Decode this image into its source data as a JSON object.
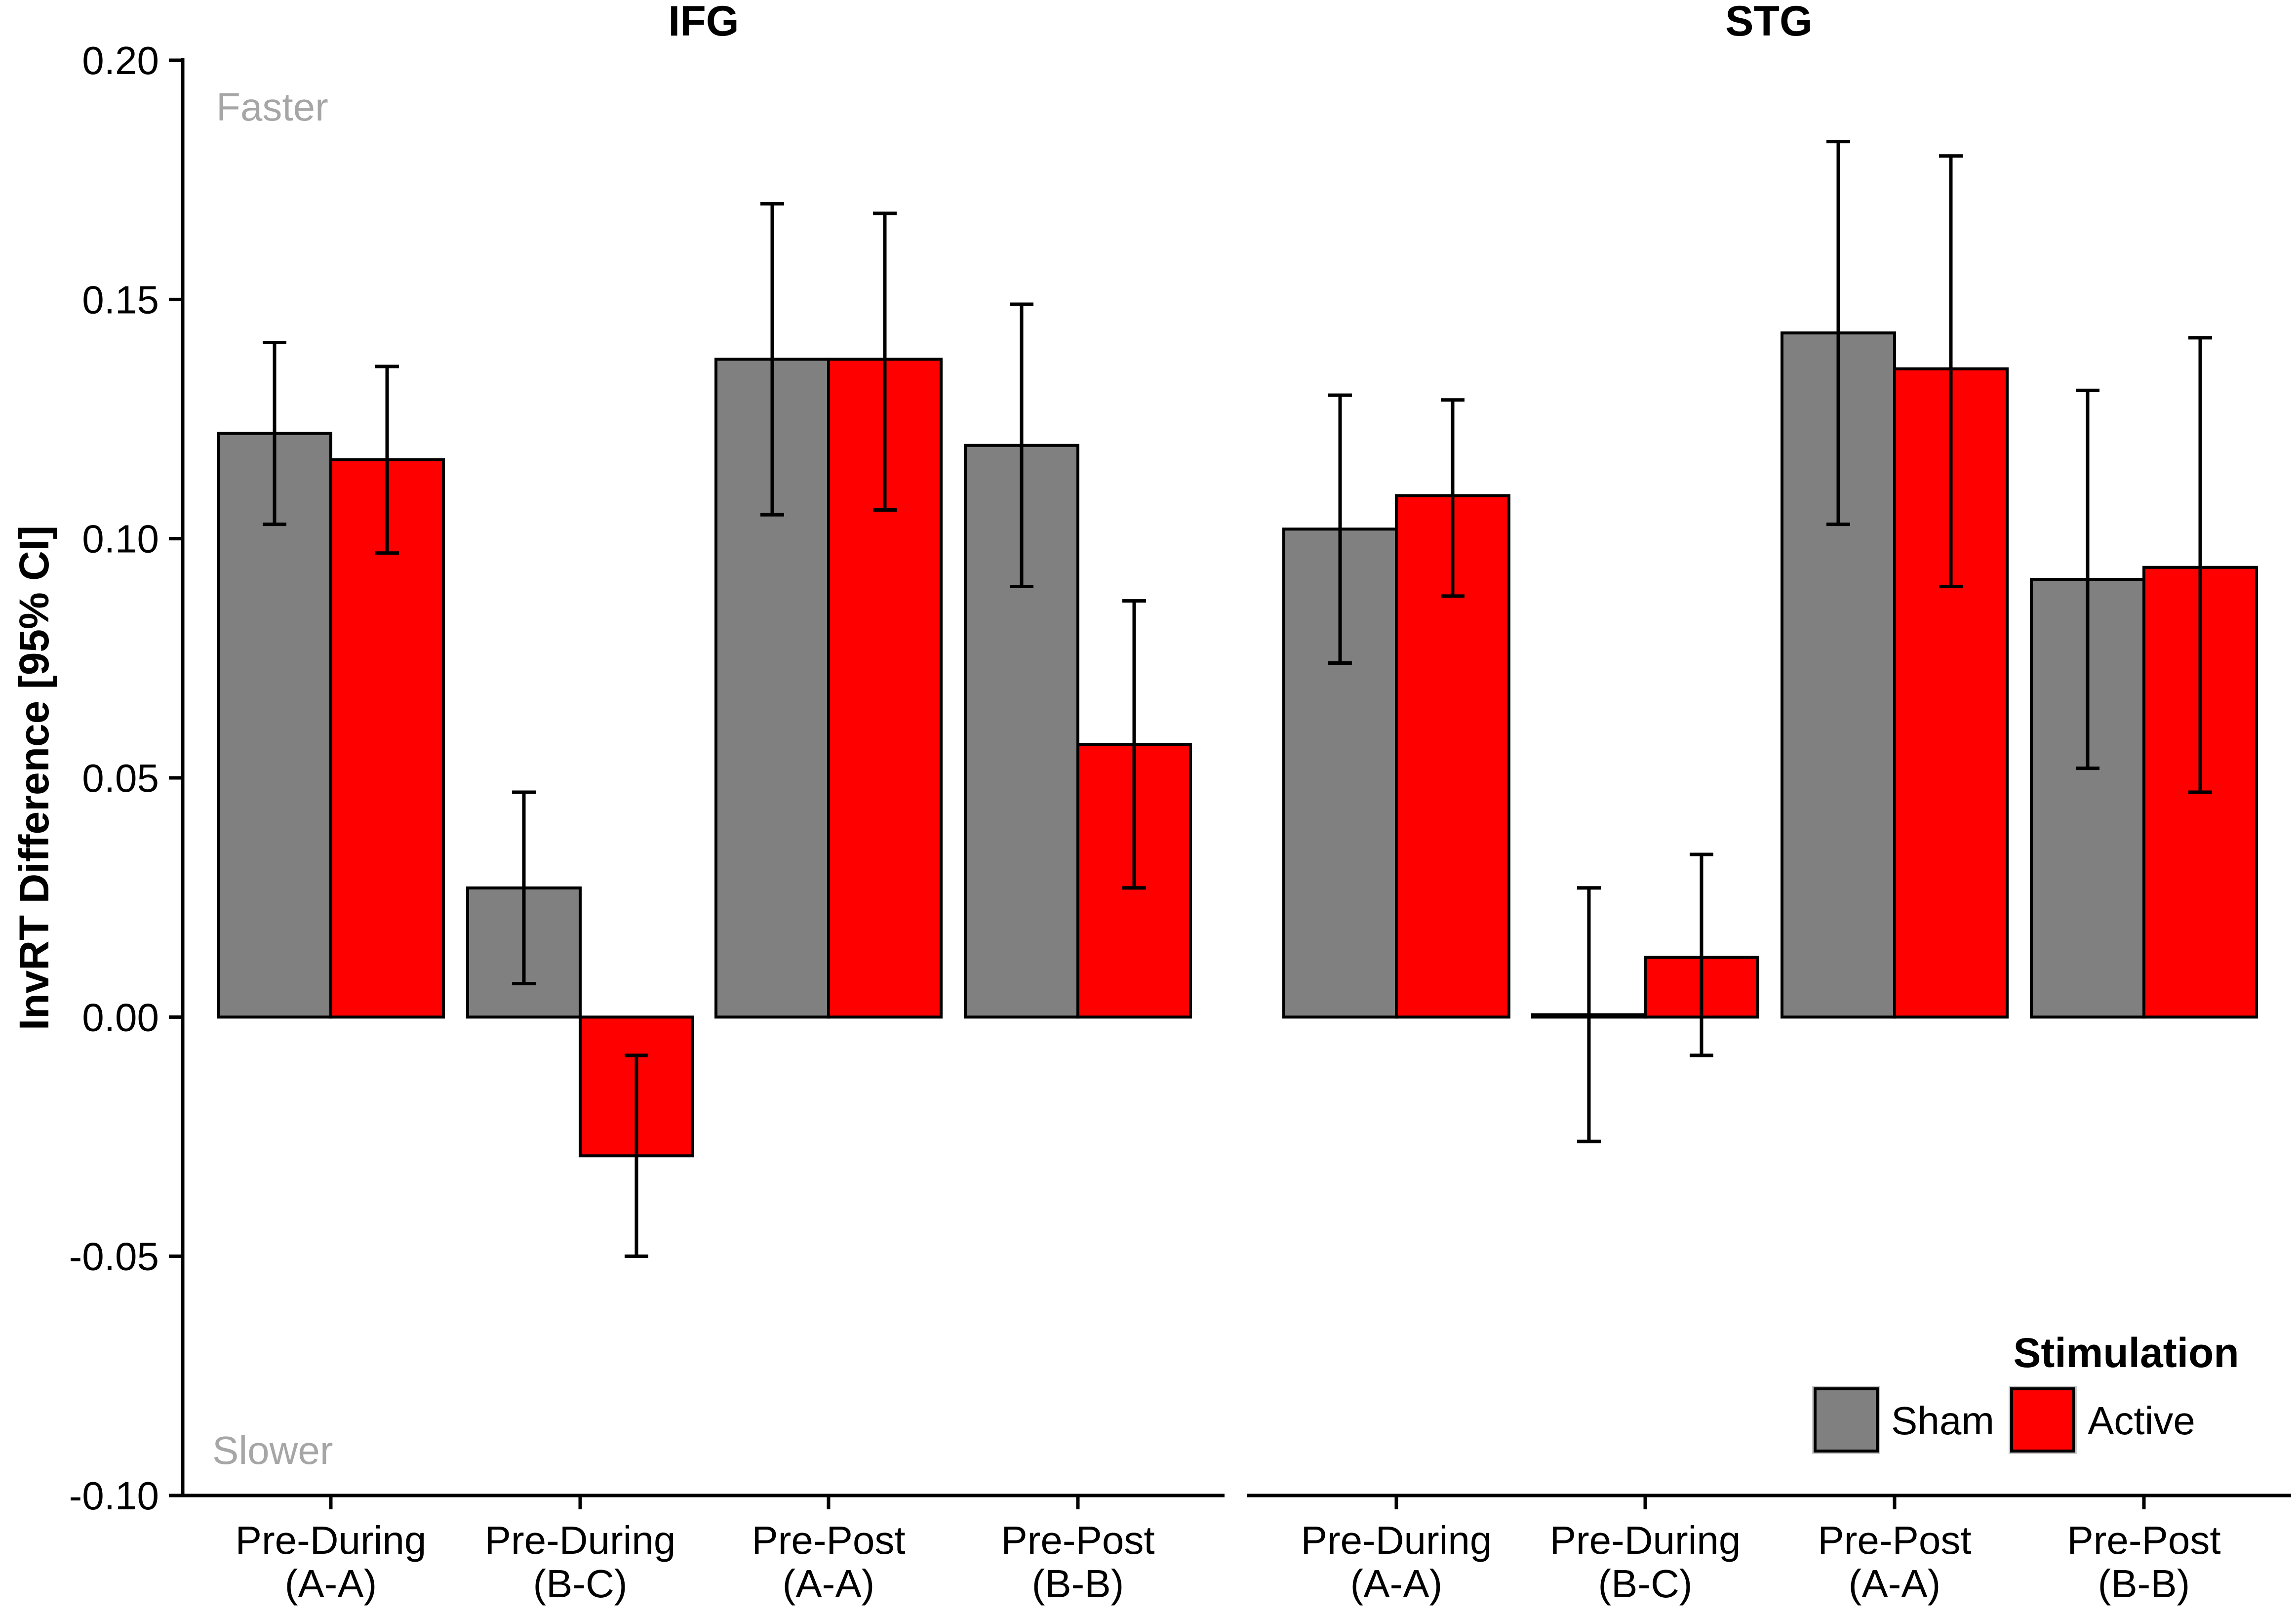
{
  "chart_data": {
    "type": "bar",
    "ylabel": "InvRT Difference [95% CI]",
    "ylim": [
      -0.1,
      0.2
    ],
    "yticks": [
      "0.20",
      "0.15",
      "0.10",
      "0.05",
      "0.00",
      "-0.05",
      "-0.10"
    ],
    "ytick_values": [
      0.2,
      0.15,
      0.1,
      0.05,
      0.0,
      -0.05,
      -0.1
    ],
    "annotations": {
      "top": "Faster",
      "bottom": "Slower"
    },
    "categories": [
      [
        "Pre-During",
        "(A-A)"
      ],
      [
        "Pre-During",
        "(B-C)"
      ],
      [
        "Pre-Post",
        "(A-A)"
      ],
      [
        "Pre-Post",
        "(B-B)"
      ]
    ],
    "legend": {
      "title": "Stimulation",
      "position": "bottom-right"
    },
    "series_meta": [
      {
        "name": "Sham",
        "color": "#808080"
      },
      {
        "name": "Active",
        "color": "#ff0000"
      }
    ],
    "panels": [
      {
        "title": "IFG",
        "series": [
          {
            "name": "Sham",
            "values": [
              0.122,
              0.027,
              0.1375,
              0.1195
            ],
            "ci_low": [
              0.103,
              0.007,
              0.105,
              0.09
            ],
            "ci_high": [
              0.141,
              0.047,
              0.17,
              0.149
            ]
          },
          {
            "name": "Active",
            "values": [
              0.1165,
              -0.029,
              0.1375,
              0.057
            ],
            "ci_low": [
              0.097,
              -0.05,
              0.106,
              0.027
            ],
            "ci_high": [
              0.136,
              -0.008,
              0.168,
              0.087
            ]
          }
        ]
      },
      {
        "title": "STG",
        "series": [
          {
            "name": "Sham",
            "values": [
              0.102,
              0.0005,
              0.143,
              0.0915
            ],
            "ci_low": [
              0.074,
              -0.026,
              0.103,
              0.052
            ],
            "ci_high": [
              0.13,
              0.027,
              0.183,
              0.131
            ]
          },
          {
            "name": "Active",
            "values": [
              0.109,
              0.0125,
              0.1355,
              0.094
            ],
            "ci_low": [
              0.088,
              -0.008,
              0.09,
              0.047
            ],
            "ci_high": [
              0.129,
              0.034,
              0.18,
              0.142
            ]
          }
        ]
      }
    ]
  }
}
